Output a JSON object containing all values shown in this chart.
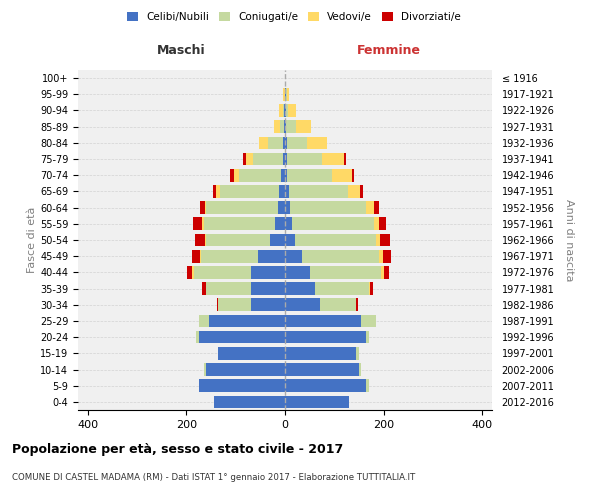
{
  "age_groups": [
    "0-4",
    "5-9",
    "10-14",
    "15-19",
    "20-24",
    "25-29",
    "30-34",
    "35-39",
    "40-44",
    "45-49",
    "50-54",
    "55-59",
    "60-64",
    "65-69",
    "70-74",
    "75-79",
    "80-84",
    "85-89",
    "90-94",
    "95-99",
    "100+"
  ],
  "anni_nascita": [
    "2012-2016",
    "2007-2011",
    "2002-2006",
    "1997-2001",
    "1992-1996",
    "1987-1991",
    "1982-1986",
    "1977-1981",
    "1972-1976",
    "1967-1971",
    "1962-1966",
    "1957-1961",
    "1952-1956",
    "1947-1951",
    "1942-1946",
    "1937-1941",
    "1932-1936",
    "1927-1931",
    "1922-1926",
    "1917-1921",
    "≤ 1916"
  ],
  "maschi": {
    "celibi": [
      145,
      175,
      160,
      135,
      175,
      155,
      70,
      70,
      70,
      55,
      30,
      20,
      15,
      12,
      8,
      5,
      5,
      3,
      2,
      1,
      0
    ],
    "coniugati": [
      0,
      0,
      5,
      0,
      5,
      20,
      65,
      90,
      115,
      115,
      130,
      145,
      145,
      120,
      85,
      60,
      30,
      8,
      3,
      0,
      0
    ],
    "vedovi": [
      0,
      0,
      0,
      0,
      0,
      0,
      0,
      0,
      3,
      3,
      3,
      3,
      3,
      7,
      10,
      15,
      18,
      12,
      8,
      3,
      0
    ],
    "divorziati": [
      0,
      0,
      0,
      0,
      0,
      0,
      3,
      8,
      10,
      15,
      20,
      18,
      10,
      8,
      8,
      5,
      0,
      0,
      0,
      0,
      0
    ]
  },
  "femmine": {
    "nubili": [
      130,
      165,
      150,
      145,
      165,
      155,
      70,
      60,
      50,
      35,
      20,
      15,
      10,
      8,
      5,
      5,
      5,
      3,
      2,
      2,
      0
    ],
    "coniugate": [
      0,
      5,
      5,
      5,
      5,
      30,
      75,
      110,
      145,
      155,
      165,
      165,
      155,
      120,
      90,
      70,
      40,
      20,
      5,
      2,
      0
    ],
    "vedove": [
      0,
      0,
      0,
      0,
      0,
      0,
      0,
      3,
      5,
      8,
      8,
      10,
      15,
      25,
      40,
      45,
      40,
      30,
      15,
      5,
      0
    ],
    "divorziate": [
      0,
      0,
      0,
      0,
      0,
      0,
      3,
      5,
      12,
      18,
      20,
      15,
      10,
      5,
      5,
      3,
      0,
      0,
      0,
      0,
      0
    ]
  },
  "colors": {
    "celibi": "#4472c4",
    "coniugati": "#c5d9a0",
    "vedovi": "#ffd966",
    "divorziati": "#cc0000"
  },
  "xlim": 420,
  "title": "Popolazione per età, sesso e stato civile - 2017",
  "subtitle": "COMUNE DI CASTEL MADAMA (RM) - Dati ISTAT 1° gennaio 2017 - Elaborazione TUTTITALIA.IT",
  "ylabel_left": "Fasce di età",
  "ylabel_right": "Anni di nascita",
  "xlabel_maschi": "Maschi",
  "xlabel_femmine": "Femmine"
}
